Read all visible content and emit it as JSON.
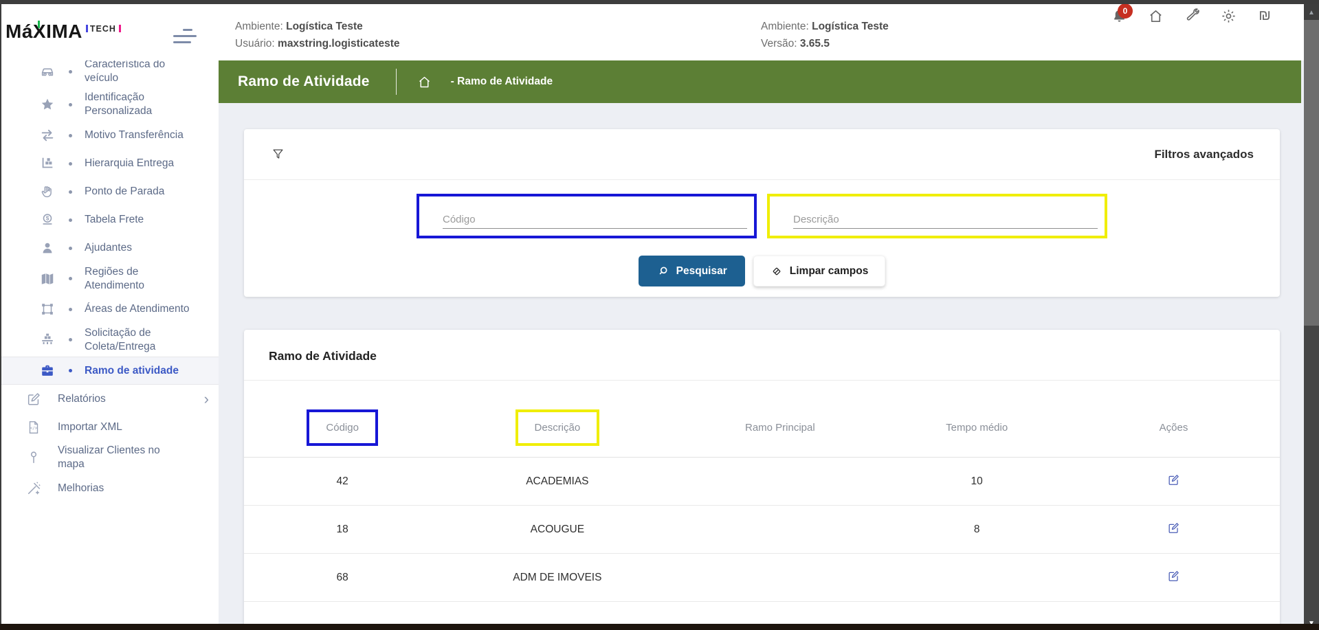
{
  "header": {
    "logo": {
      "brand": "MáXIMA",
      "suffix": "TECH"
    },
    "environment_left": {
      "label": "Ambiente:",
      "value": "Logística Teste"
    },
    "user": {
      "label": "Usuário:",
      "value": "maxstring.logisticateste"
    },
    "environment_right": {
      "label": "Ambiente:",
      "value": "Logística Teste"
    },
    "version": {
      "label": "Versão:",
      "value": "3.65.5"
    },
    "notifications_badge": "0"
  },
  "sidebar": {
    "items": [
      {
        "icon": "car",
        "label": "Característica do veículo",
        "sub": true
      },
      {
        "icon": "star",
        "label": "Identificação Personalizada",
        "sub": true
      },
      {
        "icon": "transfer-arrows",
        "label": "Motivo Transferência",
        "sub": true
      },
      {
        "icon": "delivery-hierarchy",
        "label": "Hierarquia Entrega",
        "sub": true
      },
      {
        "icon": "hand",
        "label": "Ponto de Parada",
        "sub": true
      },
      {
        "icon": "money",
        "label": "Tabela Frete",
        "sub": true
      },
      {
        "icon": "person",
        "label": "Ajudantes",
        "sub": true
      },
      {
        "icon": "map",
        "label": "Regiões de Atendimento",
        "sub": true
      },
      {
        "icon": "area",
        "label": "Áreas de Atendimento",
        "sub": true
      },
      {
        "icon": "truck",
        "label": "Solicitação de Coleta/Entrega",
        "sub": true
      },
      {
        "icon": "briefcase",
        "label": "Ramo de atividade",
        "sub": true,
        "active": true
      },
      {
        "icon": "report",
        "label": "Relatórios",
        "section": true,
        "chevron": "›"
      },
      {
        "icon": "xml-file",
        "label": "Importar XML",
        "section": true
      },
      {
        "icon": "map-pin",
        "label": "Visualizar Clientes no mapa",
        "section": true
      },
      {
        "icon": "magic-wand",
        "label": "Melhorias",
        "section": true
      }
    ]
  },
  "page": {
    "title": "Ramo de Atividade",
    "breadcrumb": "- Ramo de Atividade"
  },
  "filters": {
    "title": "Filtros avançados",
    "codigo_placeholder": "Código",
    "descricao_placeholder": "Descrição",
    "search_label": "Pesquisar",
    "clear_label": "Limpar campos"
  },
  "table": {
    "card_title": "Ramo de Atividade",
    "columns": [
      "Código",
      "Descrição",
      "Ramo Principal",
      "Tempo médio",
      "Ações"
    ],
    "rows": [
      {
        "codigo": "42",
        "descricao": "ACADEMIAS",
        "ramo_principal": "",
        "tempo_medio": "10"
      },
      {
        "codigo": "18",
        "descricao": "ACOUGUE",
        "ramo_principal": "",
        "tempo_medio": "8"
      },
      {
        "codigo": "68",
        "descricao": "ADM DE IMOVEIS",
        "ramo_principal": "",
        "tempo_medio": ""
      }
    ]
  },
  "scrollbar": {
    "up_arrow": "▲",
    "down_arrow": "▼"
  },
  "colors": {
    "accent_green": "#5c7f35",
    "primary_blue": "#1d6091",
    "active_blue": "#3c59c5",
    "highlight_blue": "#1717d6",
    "highlight_yellow": "#f0ee04",
    "badge_red": "#c62f21"
  }
}
